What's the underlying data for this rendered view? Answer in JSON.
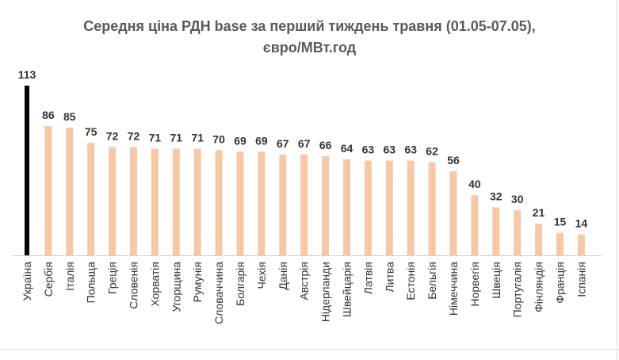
{
  "chart_data": {
    "type": "bar",
    "title_lines": [
      "Середня ціна РДН base за перший тиждень травня (01.05-07.05),",
      "євро/МВт.год"
    ],
    "categories": [
      "Україна",
      "Сербія",
      "Італія",
      "Польща",
      "Греція",
      "Словенія",
      "Хорватія",
      "Угорщина",
      "Румунія",
      "Словаччина",
      "Болгарія",
      "Чехія",
      "Данія",
      "Австрія",
      "Нідерланди",
      "Швейцарія",
      "Латвія",
      "Литва",
      "Естонія",
      "Бельгія",
      "Німеччина",
      "Норвегія",
      "Швеція",
      "Португалія",
      "Фінляндія",
      "Франція",
      "Іспанія"
    ],
    "values": [
      113,
      86,
      85,
      75,
      72,
      72,
      71,
      71,
      71,
      70,
      69,
      69,
      67,
      67,
      66,
      64,
      63,
      63,
      63,
      62,
      56,
      40,
      32,
      30,
      21,
      15,
      14
    ],
    "colors": {
      "highlight": "#000000",
      "bar": "#f5c8a8",
      "label": "#333333",
      "axis": "#d0d0d0"
    },
    "highlight_index": 0,
    "ylim": [
      0,
      120
    ],
    "grid": false,
    "legend": false
  }
}
